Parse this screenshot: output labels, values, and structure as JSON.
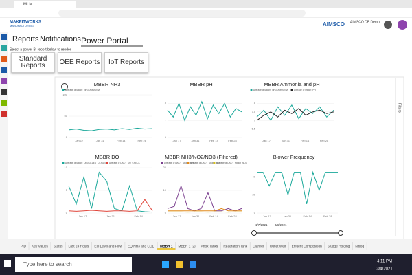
{
  "browser": {
    "tab": "MLM"
  },
  "header": {
    "logo": "MAKEITWORKS",
    "logo_sub": "MANUFACTURING",
    "brand": "AIMSCO",
    "account": "AIMSCO DB Demo"
  },
  "nav": [
    "Reports",
    "Notifications",
    "Power Portal"
  ],
  "prompt": "Select a power BI report below to render",
  "buttons": [
    "Standard Reports",
    "OEE Reports",
    "IoT Reports"
  ],
  "report": {
    "filters": "Filters",
    "charts": [
      {
        "title": "MBBR NH3",
        "series": [
          {
            "name": "Average of MBBR_NH3_AMMONIA",
            "color": "#1aa89a",
            "values": [
              18,
              20,
              17,
              16,
              19,
              20,
              18,
              21,
              19,
              22,
              20,
              21
            ]
          }
        ],
        "ylim": [
          0,
          100
        ],
        "yticks": [
          0,
          50,
          100
        ],
        "xlabels": [
          "Jan 17",
          "Jan 31",
          "Feb 14",
          "Feb 28"
        ]
      },
      {
        "title": "MBBR pH",
        "series": [
          {
            "name": "Average of MBBR_PH",
            "color": "#1aa89a",
            "values": [
              7.6,
              7.2,
              8.0,
              7.0,
              7.8,
              7.3,
              8.1,
              7.1,
              7.9,
              7.4,
              8.0,
              7.2,
              7.7,
              7.5
            ]
          }
        ],
        "ylim": [
          6,
          8.5
        ],
        "yticks": [
          6,
          7,
          8
        ],
        "xlabels": [
          "Jan 17",
          "Jan 31",
          "Feb 14",
          "Feb 28"
        ]
      },
      {
        "title": "MBBR Ammonia and pH",
        "series": [
          {
            "name": "Average of MBBR_NH3_AMMONIA",
            "color": "#1aa89a",
            "values": [
              7.2,
              7.6,
              7.0,
              7.8,
              7.3,
              7.9,
              7.1,
              7.7,
              7.4,
              7.8,
              7.2,
              7.6
            ]
          },
          {
            "name": "Average of MBBR_PH",
            "color": "#222222",
            "values": [
              7.0,
              7.3,
              7.5,
              7.2,
              7.6,
              7.4,
              7.7,
              7.3,
              7.5,
              7.6,
              7.4,
              7.5
            ]
          }
        ],
        "ylim": [
          6,
          8.5
        ],
        "yticks": [
          6.5,
          7,
          7.5,
          8
        ],
        "xlabels": [
          "Jan 17",
          "Jan 31",
          "Feb 14",
          "Feb 28"
        ]
      },
      {
        "title": "MBBR DO",
        "series": [
          {
            "name": "Average of MBBR_DISSOLVED_OXYGEN",
            "color": "#1aa89a",
            "values": [
              6,
              2,
              8,
              1,
              9,
              7,
              1,
              0.5,
              6,
              0.5,
              0.3,
              0.2
            ]
          },
          {
            "name": "Average of DAILY_DO_CHECK",
            "color": "#e0453a",
            "values": [
              0.5,
              0.4,
              0.5,
              0.6,
              0.5,
              0.4,
              0.5,
              0.5,
              0.4,
              0.5,
              3,
              0.5
            ]
          }
        ],
        "ylim": [
          0,
          10
        ],
        "yticks": [
          0,
          5,
          10
        ],
        "xlabels": [
          "Jan 17",
          "Jan 31",
          "Feb 14"
        ]
      },
      {
        "title": "MBBR NH3/NO2/NO3 (Filtered)",
        "series": [
          {
            "name": "Average of DAILY_MBBR_NH3",
            "color": "#7b3f8f",
            "values": [
              2,
              3,
              12,
              2,
              1,
              2,
              9,
              1,
              1,
              2,
              1,
              2
            ]
          },
          {
            "name": "Average of DAILY_MBBR_NO2",
            "color": "#e08a1e",
            "values": [
              1,
              1,
              1,
              1,
              1,
              1,
              1,
              1,
              2,
              1,
              1,
              1
            ]
          },
          {
            "name": "Average of DAILY_MBBR_NO3",
            "color": "#d9c21a",
            "values": [
              0.5,
              0.5,
              0.5,
              0.4,
              0.5,
              0.5,
              0.4,
              0.5,
              0.5,
              0.4,
              0.5,
              0.5
            ]
          }
        ],
        "ylim": [
          0,
          20
        ],
        "yticks": [
          0,
          10,
          20
        ],
        "xlabels": [
          "Jan 17",
          "Jan 31",
          "Feb 14",
          "Feb 28"
        ]
      },
      {
        "title": "Blower Frequency",
        "series": [
          {
            "name": "Average of BLOWER_FREQUENCY",
            "color": "#1aa89a",
            "values": [
              45,
              45,
              30,
              45,
              45,
              20,
              45,
              45,
              10,
              45,
              25,
              45,
              45,
              45
            ]
          }
        ],
        "ylim": [
          0,
          50
        ],
        "yticks": [
          0,
          20,
          40
        ],
        "xlabels": [
          "Jan 17",
          "Jan 31",
          "Feb 14",
          "Feb 28"
        ]
      }
    ],
    "slicer": {
      "start": "1/7/2021",
      "end": "3/6/2021"
    },
    "pages": [
      "PID",
      "Key Values",
      "Status",
      "Last 24 Hours",
      "EQ Level and Flow",
      "EQ NH3 and COD",
      "MBBR 1",
      "MBBR 1 (2)",
      "Anox Tanks",
      "Reaeration Tank",
      "Clarifier",
      "Outlet Weir",
      "Effluent Composition",
      "Sludge Holding",
      "Nitrog"
    ]
  },
  "taskbar": {
    "search": "Type here to search",
    "time": "4:11 PM",
    "date": "3/4/2021"
  }
}
